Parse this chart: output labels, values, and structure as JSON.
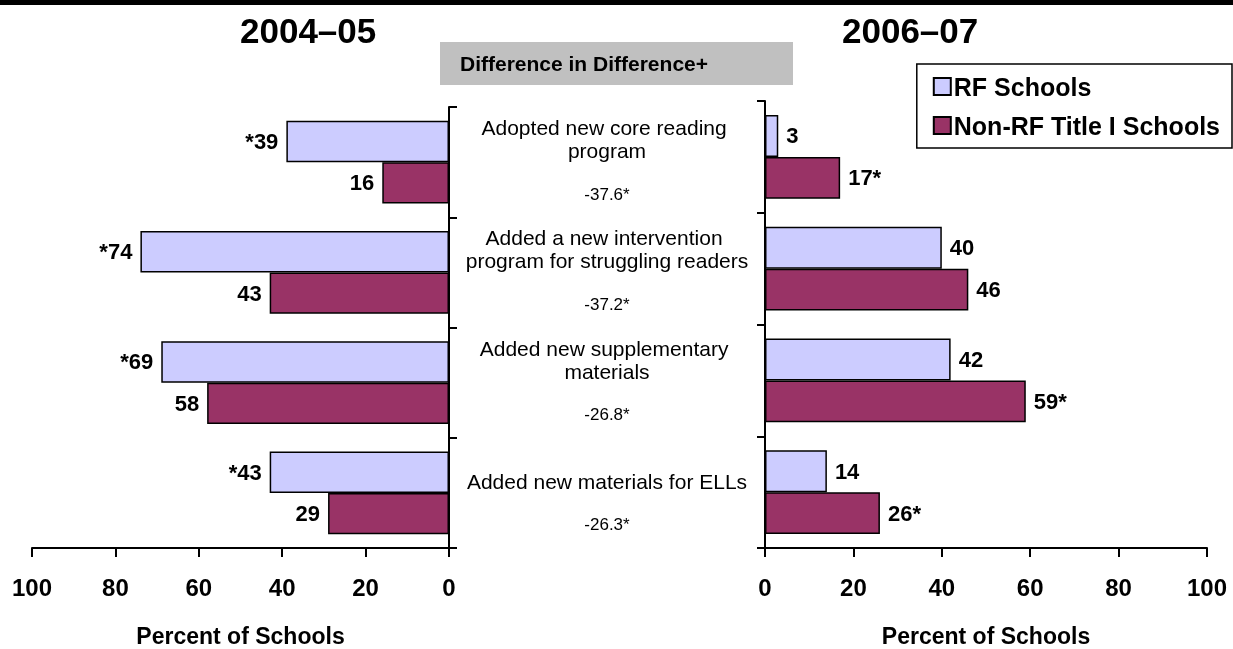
{
  "chart_data": [
    {
      "type": "bar",
      "orientation": "horizontal",
      "title": "2004–05",
      "xlabel": "Percent of Schools",
      "categories": [
        "Adopted new core reading program",
        "Added a new intervention program for struggling readers",
        "Added new supplementary materials",
        "Added new materials for ELLs"
      ],
      "series": [
        {
          "color": "#ccccff",
          "values": [
            39,
            74,
            69,
            43
          ],
          "value_labels": [
            "*39",
            "*74",
            "*69",
            "*43"
          ]
        },
        {
          "color": "#993366",
          "values": [
            16,
            43,
            58,
            29
          ],
          "value_labels": [
            "16",
            "43",
            "58",
            "29"
          ]
        }
      ],
      "xlim": [
        100,
        0
      ],
      "xticks": [
        100,
        80,
        60,
        40,
        20,
        0
      ],
      "annotations": [
        "Difference in Difference+",
        "-37.6*",
        "-37.2*",
        "-26.8*",
        "-26.3*"
      ]
    },
    {
      "type": "bar",
      "orientation": "horizontal",
      "title": "2006–07",
      "xlabel": "Percent of Schools",
      "categories": [
        null,
        null,
        null,
        null
      ],
      "series": [
        {
          "name": "RF Schools",
          "color": "#ccccff",
          "values": [
            3,
            40,
            42,
            14
          ],
          "value_labels": [
            "3",
            "40",
            "42",
            "14"
          ]
        },
        {
          "name": "Non-RF Title I Schools",
          "color": "#993366",
          "values": [
            17,
            46,
            59,
            26
          ],
          "value_labels": [
            "17*",
            "46",
            "59*",
            "26*"
          ]
        }
      ],
      "xlim": [
        0,
        100
      ],
      "xticks": [
        0,
        20,
        40,
        60,
        80,
        100
      ],
      "legend": "top right"
    }
  ]
}
